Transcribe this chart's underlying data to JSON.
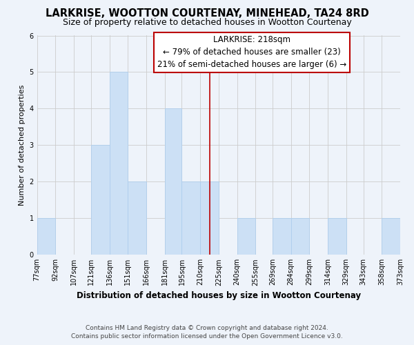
{
  "title": "LARKRISE, WOOTTON COURTENAY, MINEHEAD, TA24 8RD",
  "subtitle": "Size of property relative to detached houses in Wootton Courtenay",
  "xlabel": "Distribution of detached houses by size in Wootton Courtenay",
  "ylabel": "Number of detached properties",
  "bin_edges": [
    77,
    92,
    107,
    121,
    136,
    151,
    166,
    181,
    195,
    210,
    225,
    240,
    255,
    269,
    284,
    299,
    314,
    329,
    343,
    358,
    373
  ],
  "bin_labels": [
    "77sqm",
    "92sqm",
    "107sqm",
    "121sqm",
    "136sqm",
    "151sqm",
    "166sqm",
    "181sqm",
    "195sqm",
    "210sqm",
    "225sqm",
    "240sqm",
    "255sqm",
    "269sqm",
    "284sqm",
    "299sqm",
    "314sqm",
    "329sqm",
    "343sqm",
    "358sqm",
    "373sqm"
  ],
  "counts": [
    1,
    0,
    0,
    3,
    5,
    2,
    0,
    4,
    2,
    2,
    0,
    1,
    0,
    1,
    1,
    0,
    1,
    0,
    0,
    1
  ],
  "bar_color": "#cce0f5",
  "bar_edge_color": "#aaccee",
  "grid_color": "#cccccc",
  "vline_x": 218,
  "vline_color": "#bb0000",
  "annotation_title": "LARKRISE: 218sqm",
  "annotation_line1": "← 79% of detached houses are smaller (23)",
  "annotation_line2": "21% of semi-detached houses are larger (6) →",
  "annotation_box_edge": "#bb0000",
  "ylim": [
    0,
    6
  ],
  "yticks": [
    0,
    1,
    2,
    3,
    4,
    5,
    6
  ],
  "footnote1": "Contains HM Land Registry data © Crown copyright and database right 2024.",
  "footnote2": "Contains public sector information licensed under the Open Government Licence v3.0.",
  "title_fontsize": 10.5,
  "subtitle_fontsize": 9,
  "xlabel_fontsize": 8.5,
  "ylabel_fontsize": 8,
  "tick_fontsize": 7,
  "annotation_fontsize": 8.5,
  "footnote_fontsize": 6.5,
  "bg_color": "#eef3fa",
  "plot_bg_color": "#eef3fa"
}
